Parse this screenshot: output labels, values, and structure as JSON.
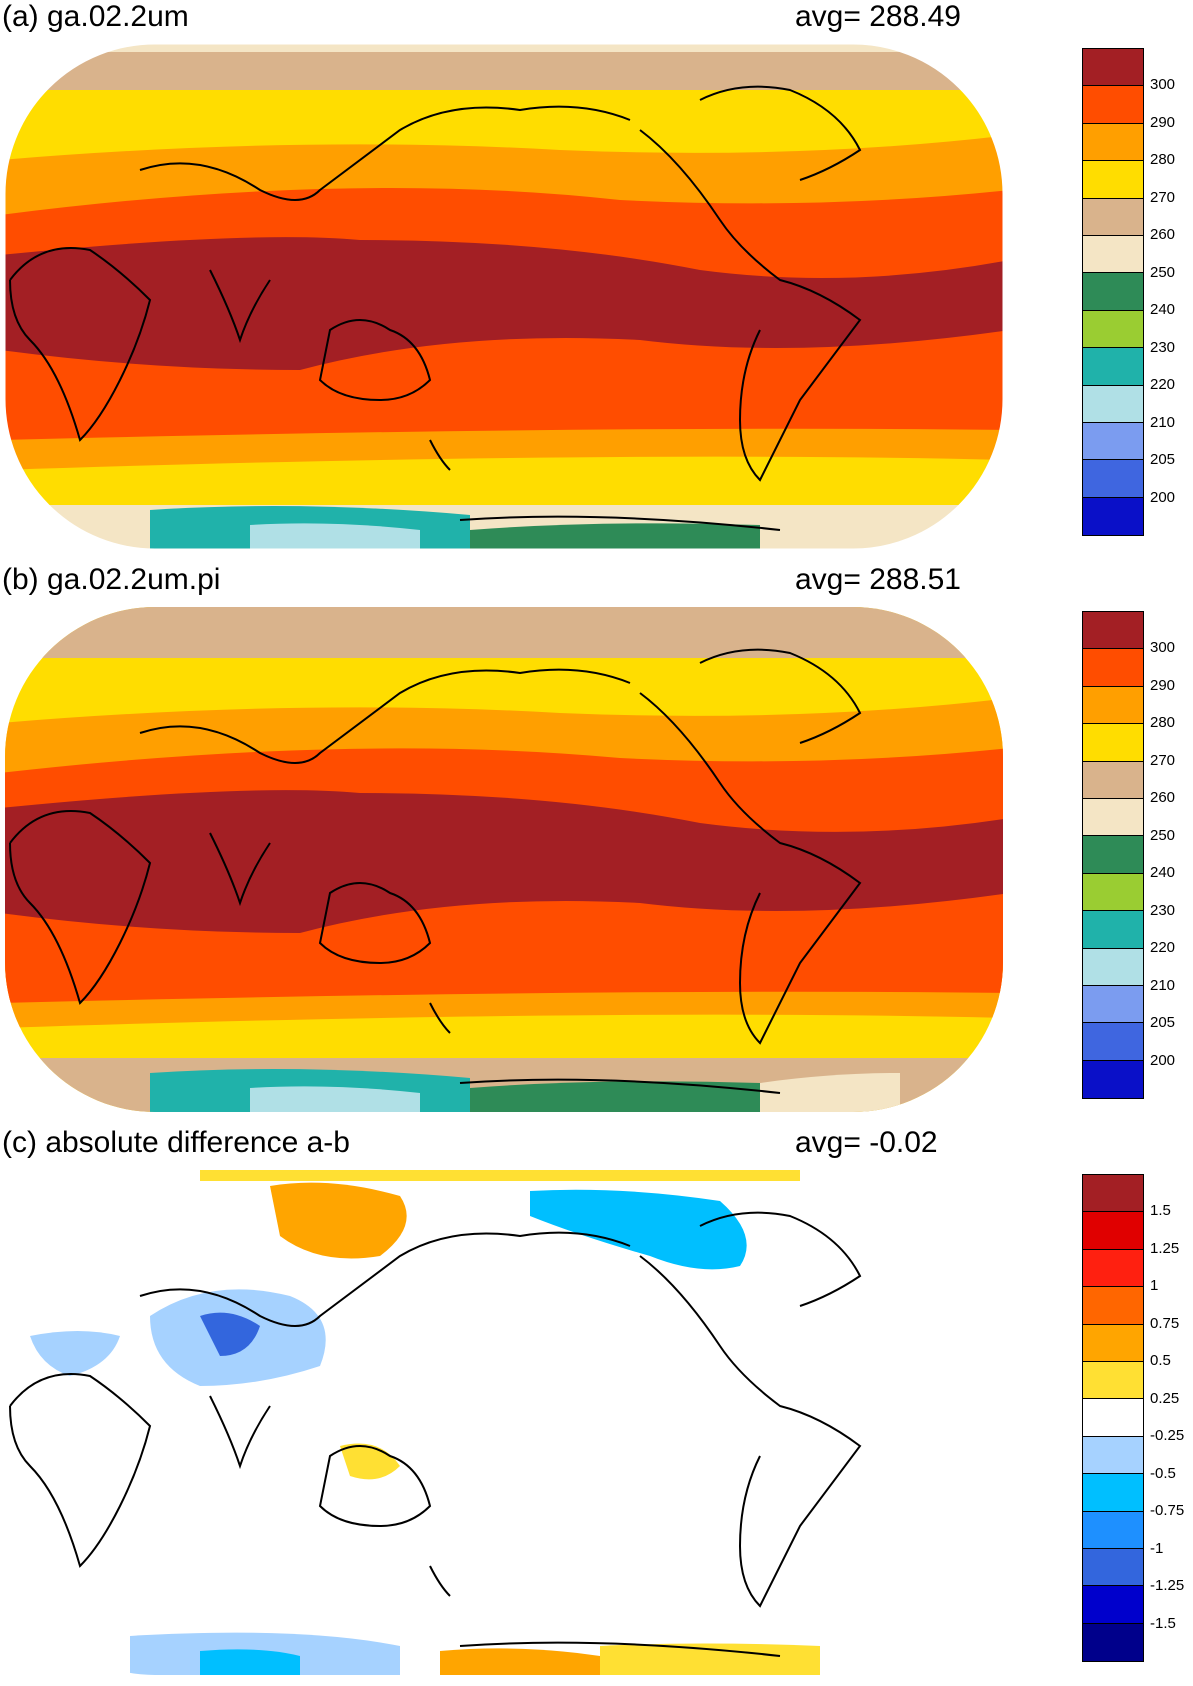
{
  "panels": [
    {
      "title": "(a) ga.02.2um",
      "avg_label": "avg=  288.49",
      "colorbar": {
        "colors": [
          "#a31f24",
          "#ff4d00",
          "#ff9f00",
          "#ffdd00",
          "#d9b38c",
          "#f4e5c5",
          "#2e8b57",
          "#9acd32",
          "#20b2aa",
          "#b0e0e6",
          "#7b9cf0",
          "#3f66e0",
          "#0a10c8"
        ],
        "labels": [
          "300",
          "290",
          "280",
          "270",
          "260",
          "250",
          "240",
          "230",
          "220",
          "210",
          "205",
          "200"
        ]
      }
    },
    {
      "title": "(b) ga.02.2um.pi",
      "avg_label": "avg=  288.51",
      "colorbar": {
        "colors": [
          "#a31f24",
          "#ff4d00",
          "#ff9f00",
          "#ffdd00",
          "#d9b38c",
          "#f4e5c5",
          "#2e8b57",
          "#9acd32",
          "#20b2aa",
          "#b0e0e6",
          "#7b9cf0",
          "#3f66e0",
          "#0a10c8"
        ],
        "labels": [
          "300",
          "290",
          "280",
          "270",
          "260",
          "250",
          "240",
          "230",
          "220",
          "210",
          "205",
          "200"
        ]
      }
    },
    {
      "title": "(c) absolute difference a-b",
      "avg_label": "avg=   -0.02",
      "colorbar": {
        "colors": [
          "#a31f24",
          "#e00000",
          "#ff2010",
          "#ff6600",
          "#ffa500",
          "#ffe033",
          "#ffffff",
          "#a6d2ff",
          "#00bfff",
          "#1e90ff",
          "#3366dd",
          "#0000cc",
          "#00008b"
        ],
        "labels": [
          "1.5",
          "1.25",
          "1",
          "0.75",
          "0.5",
          "0.25",
          "-0.25",
          "-0.5",
          "-0.75",
          "-1",
          "-1.25",
          "-1.5"
        ]
      }
    }
  ]
}
